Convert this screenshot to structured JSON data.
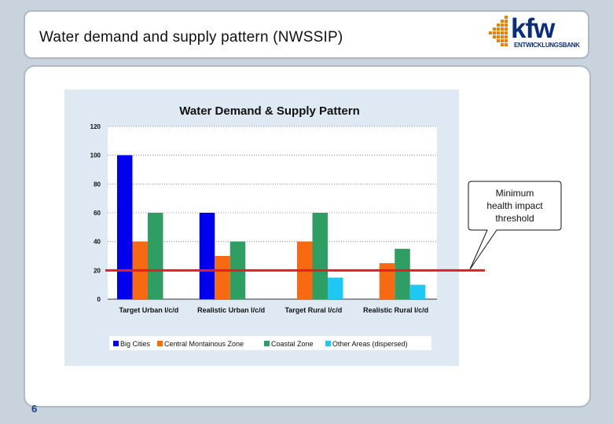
{
  "slide": {
    "title": "Water demand and supply pattern (NWSSIP)",
    "page_number": "6",
    "logo": {
      "word": "kfw",
      "sub": "ENTWICKLUNGSBANK"
    }
  },
  "callout": {
    "lines": [
      "Minimum",
      "health impact",
      "threshold"
    ],
    "threshold_value": 20,
    "line_color": "#e02020"
  },
  "chart_data": {
    "type": "bar",
    "title": "Water Demand & Supply Pattern",
    "categories": [
      "Target Urban l/c/d",
      "Realistic Urban l/c/d",
      "Target Rural l/c/d",
      "Realistic Rural l/c/d"
    ],
    "ylim": [
      0,
      120
    ],
    "yticks": [
      0,
      20,
      40,
      60,
      80,
      100,
      120
    ],
    "grid": true,
    "legend_position": "bottom",
    "background": "#dfe9f3",
    "series": [
      {
        "name": "Big Cities",
        "color": "#0000ee",
        "values": [
          100,
          60,
          null,
          null
        ]
      },
      {
        "name": "Central Montainous Zone",
        "color": "#f76a12",
        "values": [
          40,
          30,
          40,
          25
        ]
      },
      {
        "name": "Coastal Zone",
        "color": "#2e9e63",
        "values": [
          60,
          40,
          60,
          35
        ]
      },
      {
        "name": "Other Areas (dispersed)",
        "color": "#1ec8f4",
        "values": [
          null,
          null,
          15,
          10
        ]
      }
    ]
  }
}
